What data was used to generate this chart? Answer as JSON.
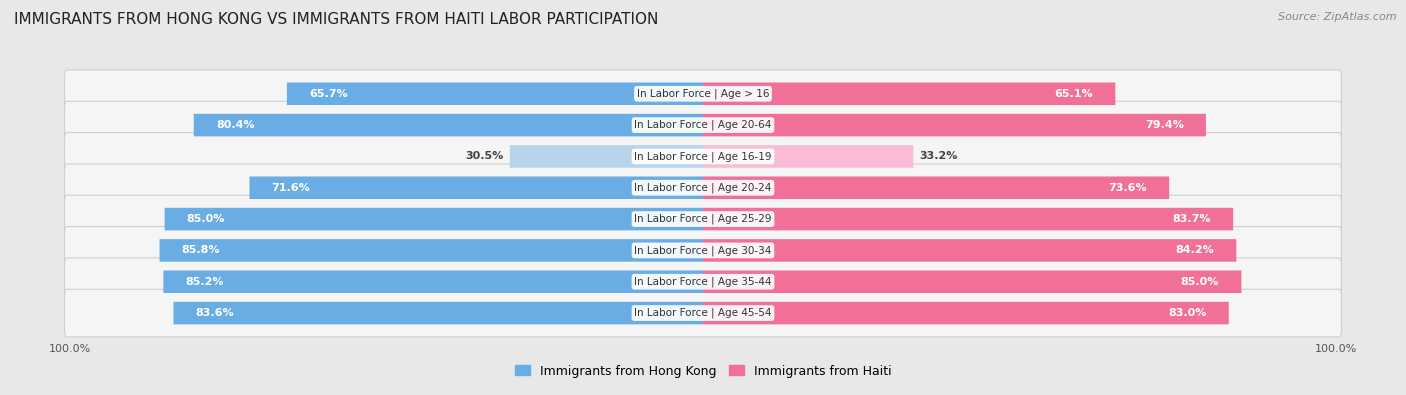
{
  "title": "IMMIGRANTS FROM HONG KONG VS IMMIGRANTS FROM HAITI LABOR PARTICIPATION",
  "source": "Source: ZipAtlas.com",
  "categories": [
    "In Labor Force | Age > 16",
    "In Labor Force | Age 20-64",
    "In Labor Force | Age 16-19",
    "In Labor Force | Age 20-24",
    "In Labor Force | Age 25-29",
    "In Labor Force | Age 30-34",
    "In Labor Force | Age 35-44",
    "In Labor Force | Age 45-54"
  ],
  "hong_kong_values": [
    65.7,
    80.4,
    30.5,
    71.6,
    85.0,
    85.8,
    85.2,
    83.6
  ],
  "haiti_values": [
    65.1,
    79.4,
    33.2,
    73.6,
    83.7,
    84.2,
    85.0,
    83.0
  ],
  "hong_kong_color": "#6aade4",
  "hong_kong_color_light": "#b8d4ea",
  "haiti_color": "#f07098",
  "haiti_color_light": "#f9bbd5",
  "bg_color": "#e8e8e8",
  "row_bg_color": "#f5f5f5",
  "row_border_color": "#d0d0d0",
  "max_value": 100.0,
  "legend_hk": "Immigrants from Hong Kong",
  "legend_haiti": "Immigrants from Haiti",
  "title_fontsize": 11,
  "source_fontsize": 8,
  "bar_label_fontsize": 8,
  "cat_label_fontsize": 7.5,
  "tick_fontsize": 8
}
